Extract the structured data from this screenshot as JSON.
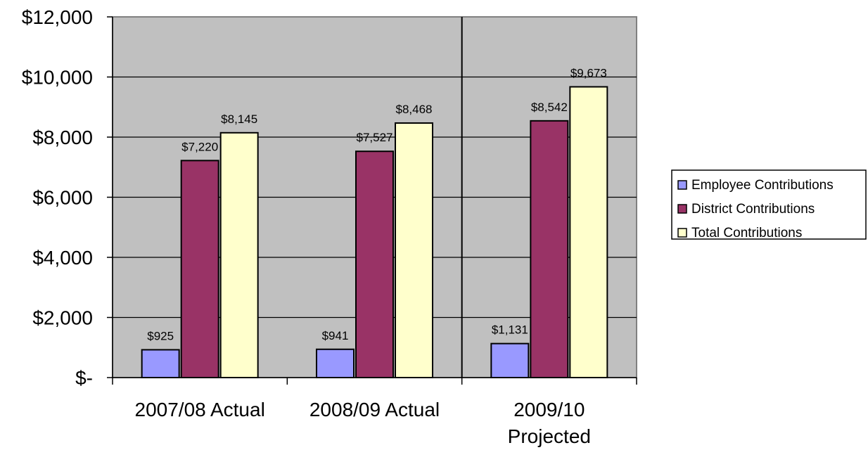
{
  "chart_data": {
    "type": "bar",
    "title": "",
    "xlabel": "",
    "ylabel": "",
    "categories": [
      [
        "2007/08  Actual"
      ],
      [
        "2008/09  Actual"
      ],
      [
        "2009/10",
        "Projected"
      ]
    ],
    "series": [
      {
        "name": "Employee Contributions",
        "color": "#9999ff",
        "values": [
          925,
          941,
          1131
        ],
        "labels": [
          "$925",
          "$941",
          "$1,131"
        ]
      },
      {
        "name": "District Contributions",
        "color": "#993366",
        "values": [
          7220,
          7527,
          8542
        ],
        "labels": [
          "$7,220",
          "$7,527",
          "$8,542"
        ]
      },
      {
        "name": "Total Contributions",
        "color": "#ffffcc",
        "values": [
          8145,
          8468,
          9673
        ],
        "labels": [
          "$8,145",
          "$8,468",
          "$9,673"
        ]
      }
    ],
    "ylim": [
      0,
      12000
    ],
    "yticks": [
      {
        "value": 0,
        "label": "$-"
      },
      {
        "value": 2000,
        "label": "$2,000"
      },
      {
        "value": 4000,
        "label": "$4,000"
      },
      {
        "value": 6000,
        "label": "$6,000"
      },
      {
        "value": 8000,
        "label": "$8,000"
      },
      {
        "value": 10000,
        "label": "$10,000"
      },
      {
        "value": 12000,
        "label": "$12,000"
      }
    ],
    "grid": true,
    "plot_background": "#c0c0c0",
    "separator_after_category": 1,
    "legend": {
      "position": "right",
      "entries": [
        "Employee Contributions",
        "District Contributions",
        "Total Contributions"
      ]
    }
  }
}
